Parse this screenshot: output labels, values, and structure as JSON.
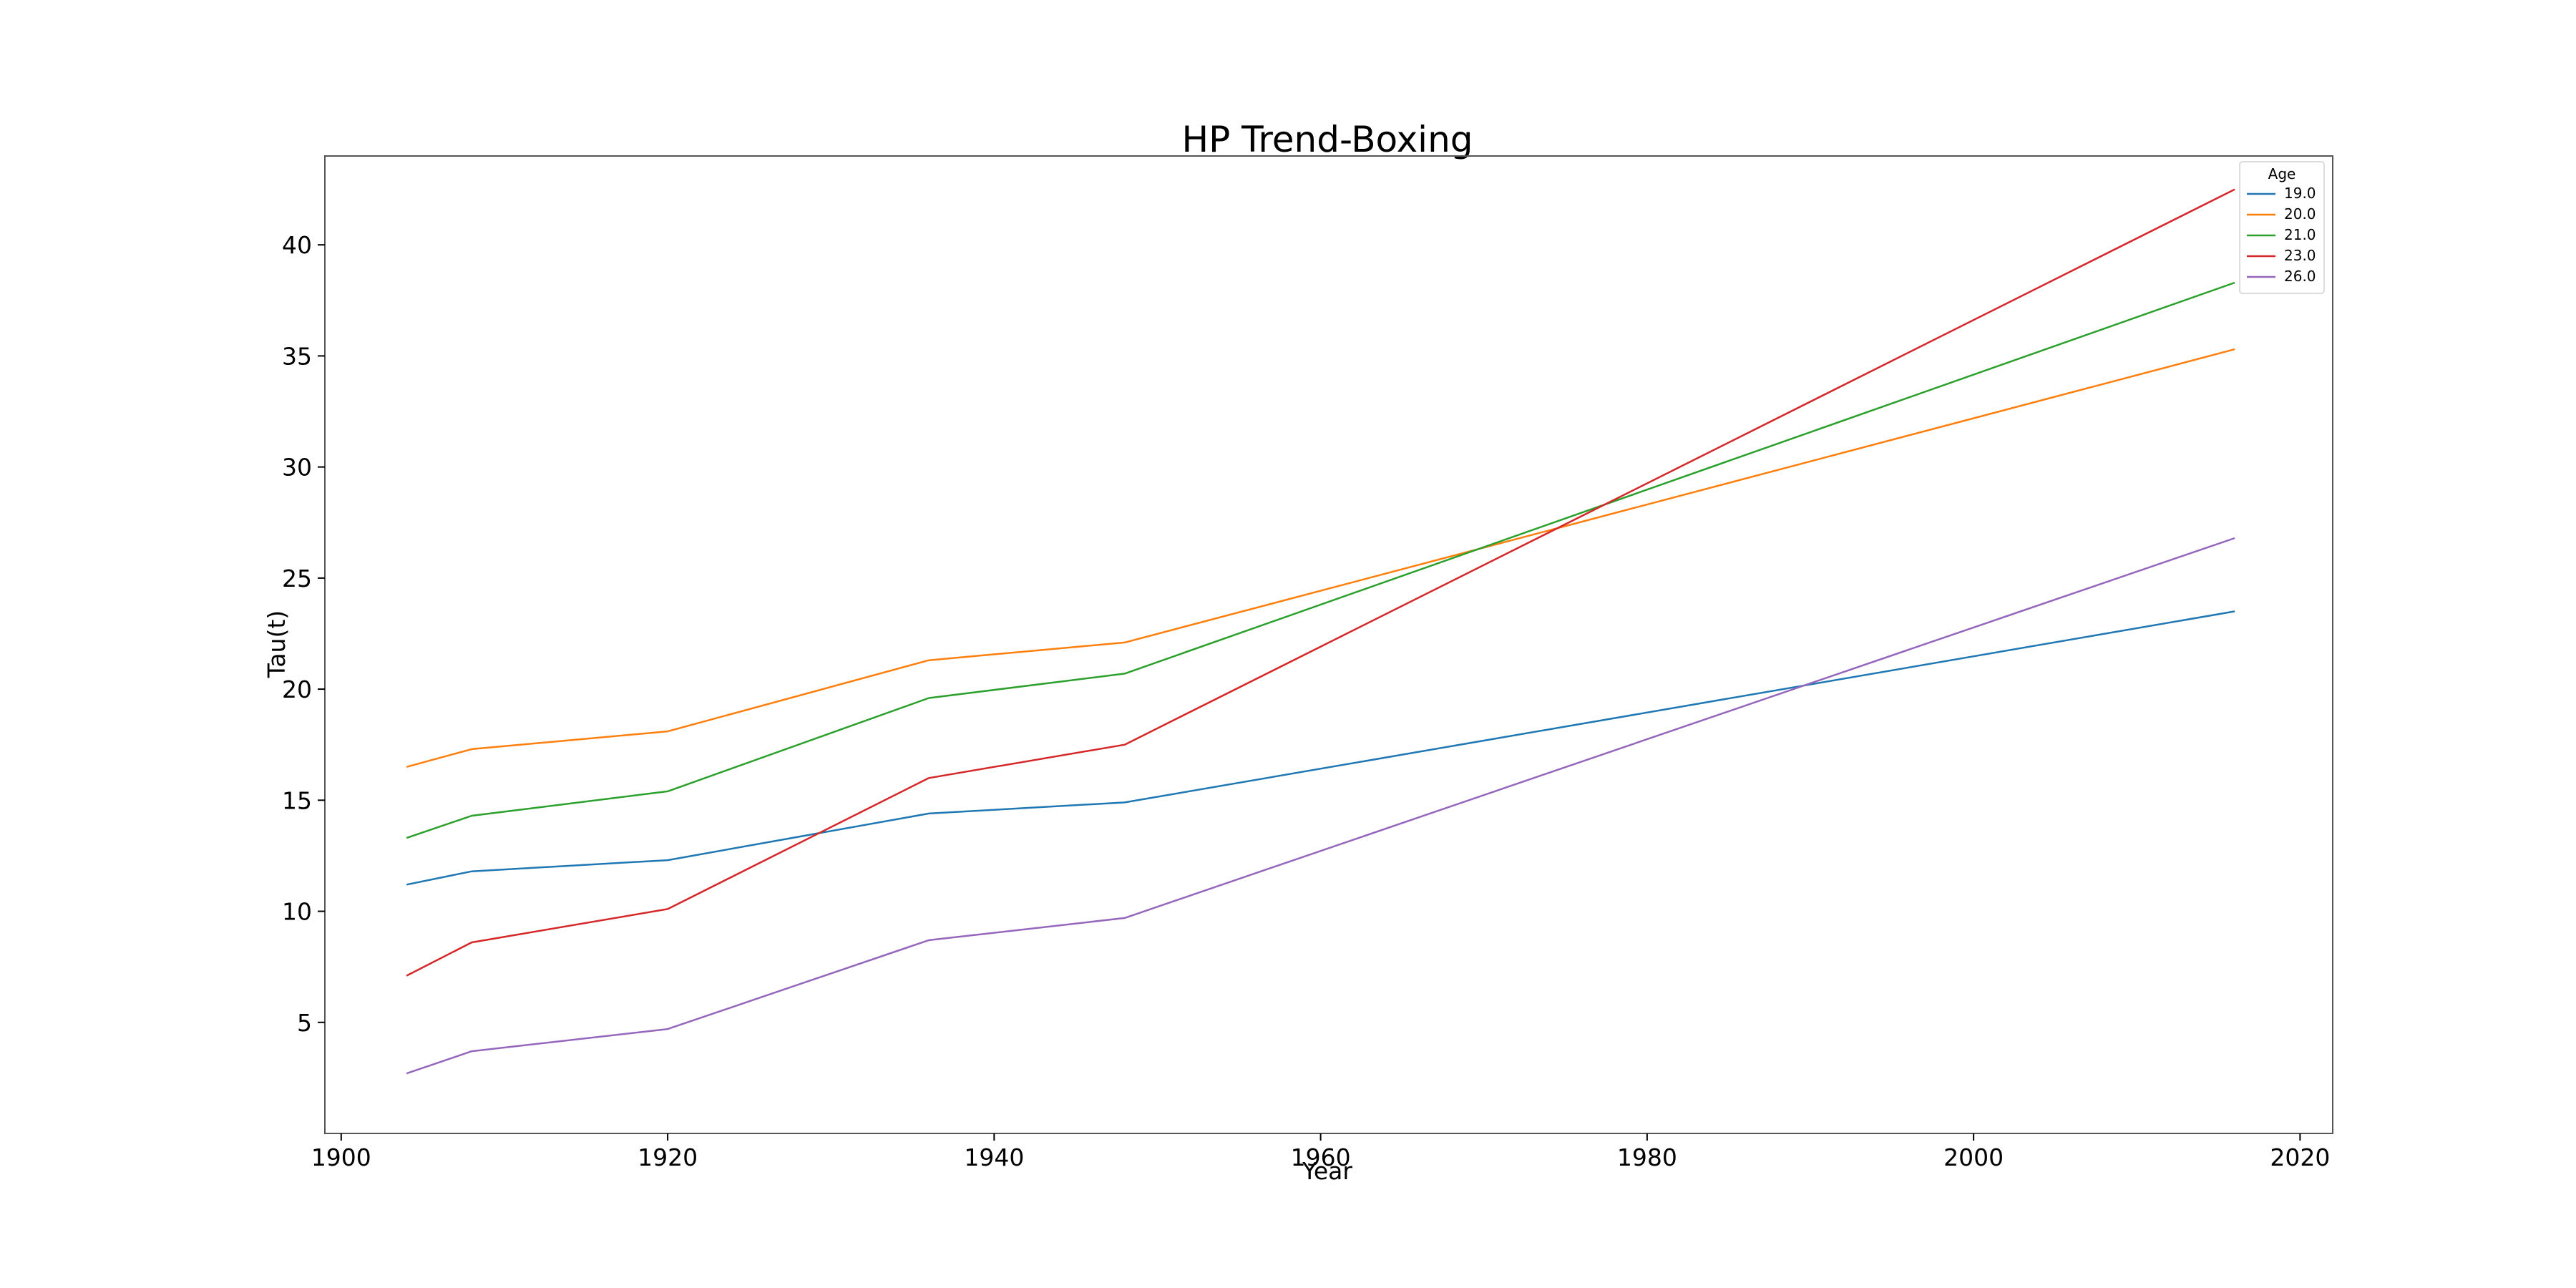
{
  "chart_data": {
    "type": "line",
    "title": "HP Trend-Boxing",
    "xlabel": "Year",
    "ylabel": "Tau(t)",
    "xlim": [
      1899,
      2022
    ],
    "ylim": [
      0,
      44
    ],
    "xticks": [
      1900,
      1920,
      1940,
      1960,
      1980,
      2000,
      2020
    ],
    "yticks": [
      5,
      10,
      15,
      20,
      25,
      30,
      35,
      40
    ],
    "grid": false,
    "legend": {
      "title": "Age",
      "placement": "top-right"
    },
    "x": [
      1904,
      1908,
      1920,
      1936,
      1948,
      2016
    ],
    "series": [
      {
        "name": "19.0",
        "color": "#1f77b4",
        "values": [
          11.2,
          11.8,
          12.3,
          14.4,
          14.9,
          23.5
        ]
      },
      {
        "name": "20.0",
        "color": "#ff7f0e",
        "values": [
          16.5,
          17.3,
          18.1,
          21.3,
          22.1,
          35.3
        ]
      },
      {
        "name": "21.0",
        "color": "#2ca02c",
        "values": [
          13.3,
          14.3,
          15.4,
          19.6,
          20.7,
          38.3
        ]
      },
      {
        "name": "23.0",
        "color": "#d62728",
        "values": [
          7.1,
          8.6,
          10.1,
          16.0,
          17.5,
          42.5
        ]
      },
      {
        "name": "26.0",
        "color": "#9467bd",
        "values": [
          2.7,
          3.7,
          4.7,
          8.7,
          9.7,
          26.8
        ]
      }
    ]
  }
}
